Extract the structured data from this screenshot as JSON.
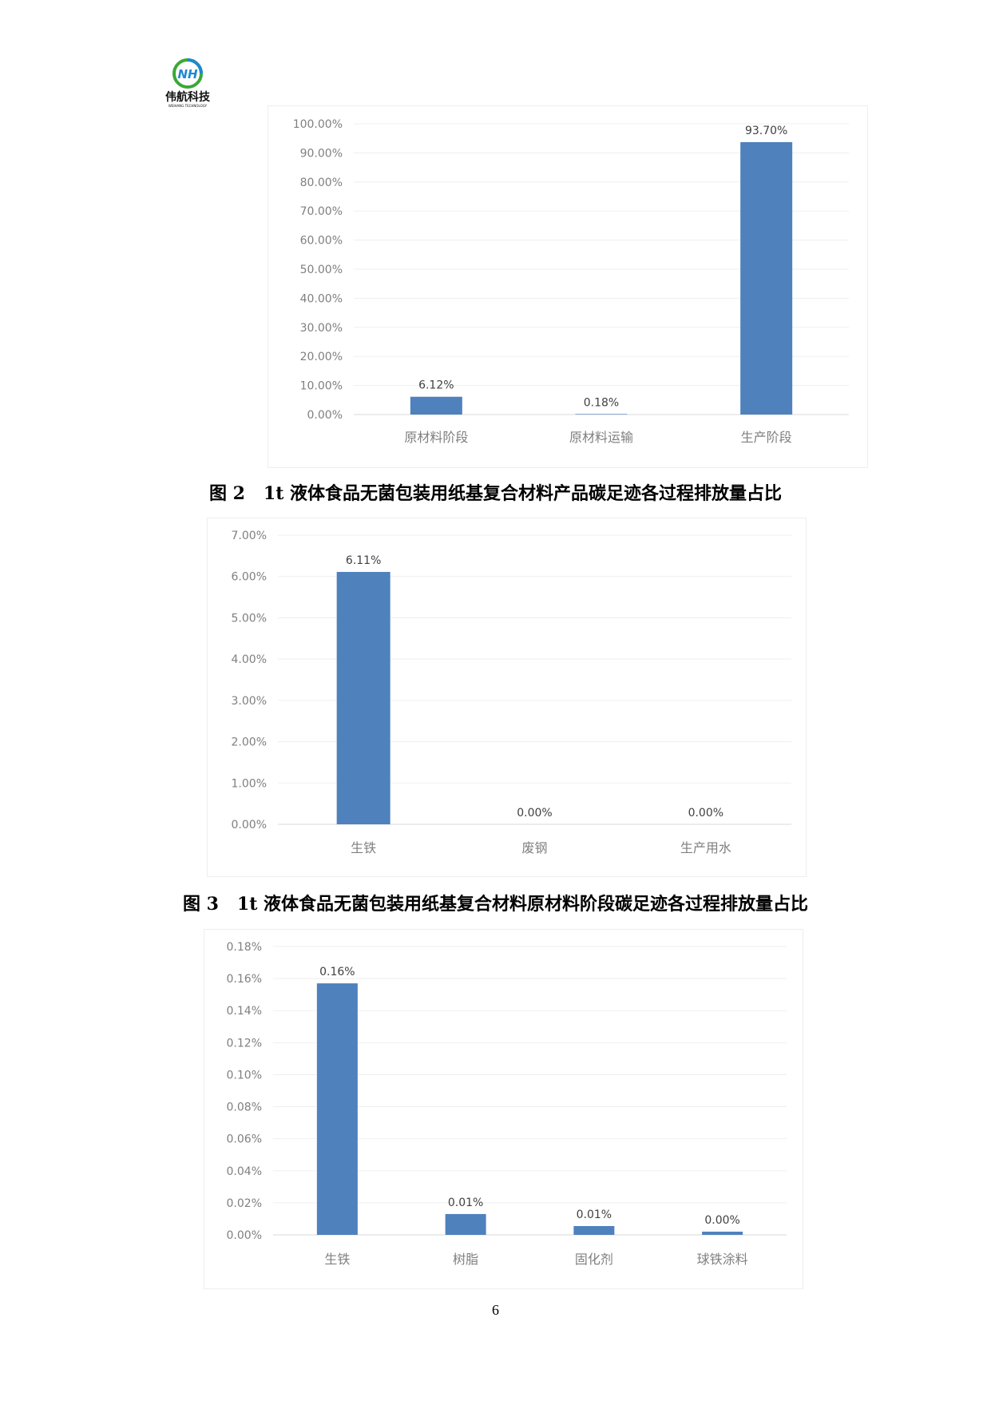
{
  "header": {
    "logo_text": "伟航科技",
    "logo_subtext": "WEIHANG TECHNOLOGY"
  },
  "colors": {
    "bar": "#4f81bd",
    "grid": "#efefef",
    "axis_text": "#7f7f7f",
    "label_text": "#404040"
  },
  "captions": [
    "图 2   1t 液体食品无菌包装用纸基复合材料产品碳足迹各过程排放量占比",
    "图 3   1t 液体食品无菌包装用纸基复合材料原材料阶段碳足迹各过程排放量占比"
  ],
  "page_number": "6",
  "chart_data": [
    {
      "type": "bar",
      "categories": [
        "原材料阶段",
        "原材料运输",
        "生产阶段"
      ],
      "values": [
        6.12,
        0.18,
        93.7
      ],
      "data_labels": [
        "6.12%",
        "0.18%",
        "93.70%"
      ],
      "ylim": [
        0,
        100
      ],
      "yticks": [
        "0.00%",
        "10.00%",
        "20.00%",
        "30.00%",
        "40.00%",
        "50.00%",
        "60.00%",
        "70.00%",
        "80.00%",
        "90.00%",
        "100.00%"
      ],
      "grid": true
    },
    {
      "type": "bar",
      "categories": [
        "生铁",
        "废钢",
        "生产用水"
      ],
      "values": [
        6.11,
        0.0,
        0.0
      ],
      "data_labels": [
        "6.11%",
        "0.00%",
        "0.00%"
      ],
      "ylim": [
        0,
        7
      ],
      "yticks": [
        "0.00%",
        "1.00%",
        "2.00%",
        "3.00%",
        "4.00%",
        "5.00%",
        "6.00%",
        "7.00%"
      ],
      "grid": true
    },
    {
      "type": "bar",
      "categories": [
        "生铁",
        "树脂",
        "固化剂",
        "球铁涂料"
      ],
      "values": [
        0.157,
        0.013,
        0.0055,
        0.002
      ],
      "data_labels": [
        "0.16%",
        "0.01%",
        "0.01%",
        "0.00%"
      ],
      "ylim": [
        0,
        0.18
      ],
      "yticks": [
        "0.00%",
        "0.02%",
        "0.04%",
        "0.06%",
        "0.08%",
        "0.10%",
        "0.12%",
        "0.14%",
        "0.16%",
        "0.18%"
      ],
      "grid": true
    }
  ]
}
